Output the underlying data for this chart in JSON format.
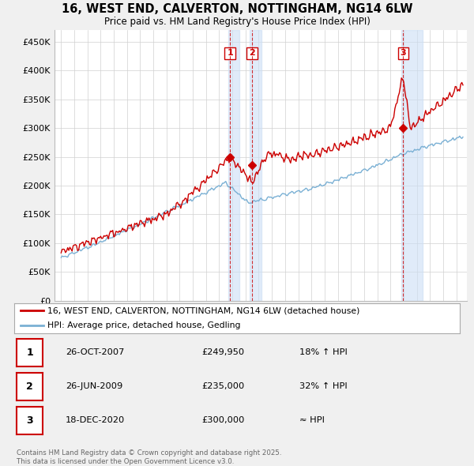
{
  "title": "16, WEST END, CALVERTON, NOTTINGHAM, NG14 6LW",
  "subtitle": "Price paid vs. HM Land Registry's House Price Index (HPI)",
  "ylabel_ticks": [
    "£0",
    "£50K",
    "£100K",
    "£150K",
    "£200K",
    "£250K",
    "£300K",
    "£350K",
    "£400K",
    "£450K"
  ],
  "ytick_values": [
    0,
    50000,
    100000,
    150000,
    200000,
    250000,
    300000,
    350000,
    400000,
    450000
  ],
  "ylim": [
    0,
    470000
  ],
  "xlim_start": 1994.5,
  "xlim_end": 2025.8,
  "sale_dates": [
    2007.82,
    2009.49,
    2020.96
  ],
  "sale_prices": [
    249950,
    235000,
    300000
  ],
  "sale_labels": [
    "1",
    "2",
    "3"
  ],
  "vline_color": "#cc0000",
  "vshade_color": "#ccdff5",
  "vshade_alpha": 0.6,
  "legend_line1": "16, WEST END, CALVERTON, NOTTINGHAM, NG14 6LW (detached house)",
  "legend_line2": "HPI: Average price, detached house, Gedling",
  "table_entries": [
    {
      "num": "1",
      "date": "26-OCT-2007",
      "price": "£249,950",
      "hpi": "18% ↑ HPI"
    },
    {
      "num": "2",
      "date": "26-JUN-2009",
      "price": "£235,000",
      "hpi": "32% ↑ HPI"
    },
    {
      "num": "3",
      "date": "18-DEC-2020",
      "price": "£300,000",
      "hpi": "≈ HPI"
    }
  ],
  "footer": "Contains HM Land Registry data © Crown copyright and database right 2025.\nThis data is licensed under the Open Government Licence v3.0.",
  "property_color": "#cc0000",
  "hpi_color": "#7ab0d4",
  "background_color": "#f0f0f0",
  "plot_bg_color": "#ffffff"
}
